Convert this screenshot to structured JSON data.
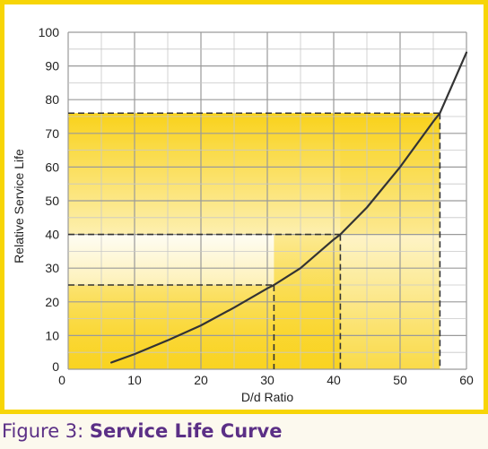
{
  "caption": {
    "label": "Figure 3:",
    "title": "Service Life Curve"
  },
  "colors": {
    "frame": "#f7d506",
    "highlight": "#f9d21b",
    "curve": "#333333",
    "caption": "#5b2f86"
  },
  "chart_data": {
    "type": "line",
    "title": "",
    "xlabel": "D/d Ratio",
    "ylabel": "Relative Service Life",
    "xlim": [
      0,
      60
    ],
    "ylim": [
      0,
      100
    ],
    "x_ticks": [
      0,
      10,
      20,
      30,
      40,
      50,
      60
    ],
    "y_ticks": [
      0,
      10,
      20,
      30,
      40,
      50,
      60,
      70,
      80,
      90,
      100
    ],
    "grid": true,
    "series": [
      {
        "x": [
          6.5,
          10,
          15,
          20,
          25,
          30,
          31,
          35,
          40,
          41,
          45,
          50,
          55,
          56,
          60
        ],
        "y": [
          2,
          4.5,
          8.6,
          13,
          18.3,
          24,
          25,
          30,
          38.5,
          40,
          48,
          60,
          73.5,
          76,
          94
        ]
      }
    ],
    "reference_points": [
      {
        "x": 31,
        "y": 25
      },
      {
        "x": 41,
        "y": 40
      },
      {
        "x": 56,
        "y": 76
      }
    ]
  }
}
